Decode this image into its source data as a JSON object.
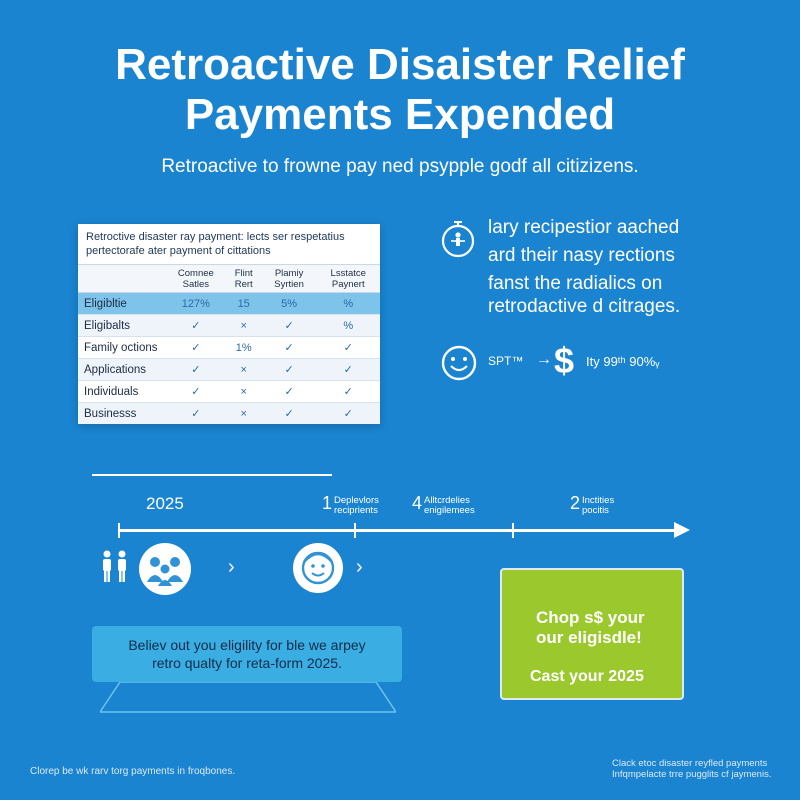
{
  "title": {
    "line1": "Retroactive Disaister Relief",
    "line2": "Payments Expended"
  },
  "subtitle": "Retroactive to frowne pay ned psypple godf all citizizens.",
  "table": {
    "heading1": "Retroctive disaster ray payment: lects ser respetatius",
    "heading2": "pertectorafe ater payment of cittations",
    "columns": [
      "",
      "Comnee Satles",
      "Flint Rert",
      "Plamiy Syrtien",
      "Lsstatce Paynert"
    ],
    "rows": [
      {
        "label": "Eligibltie",
        "cells": [
          "127%",
          "15",
          "5%",
          "%"
        ],
        "highlight": true
      },
      {
        "label": "Eligibalts",
        "cells": [
          "✓",
          "×",
          "✓",
          "%"
        ],
        "highlight": false
      },
      {
        "label": "Family octions",
        "cells": [
          "✓",
          "1%",
          "✓",
          "✓"
        ],
        "highlight": false
      },
      {
        "label": "Applications",
        "cells": [
          "✓",
          "×",
          "✓",
          "✓"
        ],
        "highlight": false
      },
      {
        "label": "Individuals",
        "cells": [
          "✓",
          "×",
          "✓",
          "✓"
        ],
        "highlight": false
      },
      {
        "label": "Businesss",
        "cells": [
          "✓",
          "×",
          "✓",
          "✓"
        ],
        "highlight": false
      }
    ]
  },
  "info": {
    "line1": "lary recipestior aached",
    "line2": "ard their nasy rections",
    "line3": "fanst the radialics on",
    "line4": "retrodactive d citrages.",
    "icon": "timer-person-icon"
  },
  "payment_row": {
    "label": "SPT™",
    "arrow": "→",
    "dollar": "$",
    "right_text": "Ity 99ᵗʰ 90%ᵧ",
    "icon": "smiley-icon"
  },
  "timeline": {
    "year": "2025",
    "labels": [
      {
        "num": "1",
        "text1": "Deplevlors",
        "text2": "reciprients"
      },
      {
        "num": "4",
        "text1": "Alltcrdelies",
        "text2": "enigilemees"
      },
      {
        "num": "2",
        "text1": "Inctities",
        "text2": "pocitis"
      }
    ],
    "chevron": "›"
  },
  "banner": {
    "line1": "Believ out you eligility for ble we arpey",
    "line2": "retro qualty for reta-form 2025."
  },
  "cta": {
    "line1": "Chop s$ your",
    "line2": "our eligisdle!",
    "line3": "Cast your 2025",
    "color": "#9bc92d"
  },
  "footer": {
    "left": "Clorep be wk rarv torg payments in froqbones.",
    "right1": "Clack etoc disaster reyfled payments",
    "right2": "Infqmpelacte trre pugglits cf jaymenis."
  },
  "colors": {
    "background": "#1a84d0",
    "highlight_row": "#7ec3ea",
    "banner": "#3aaee3"
  }
}
